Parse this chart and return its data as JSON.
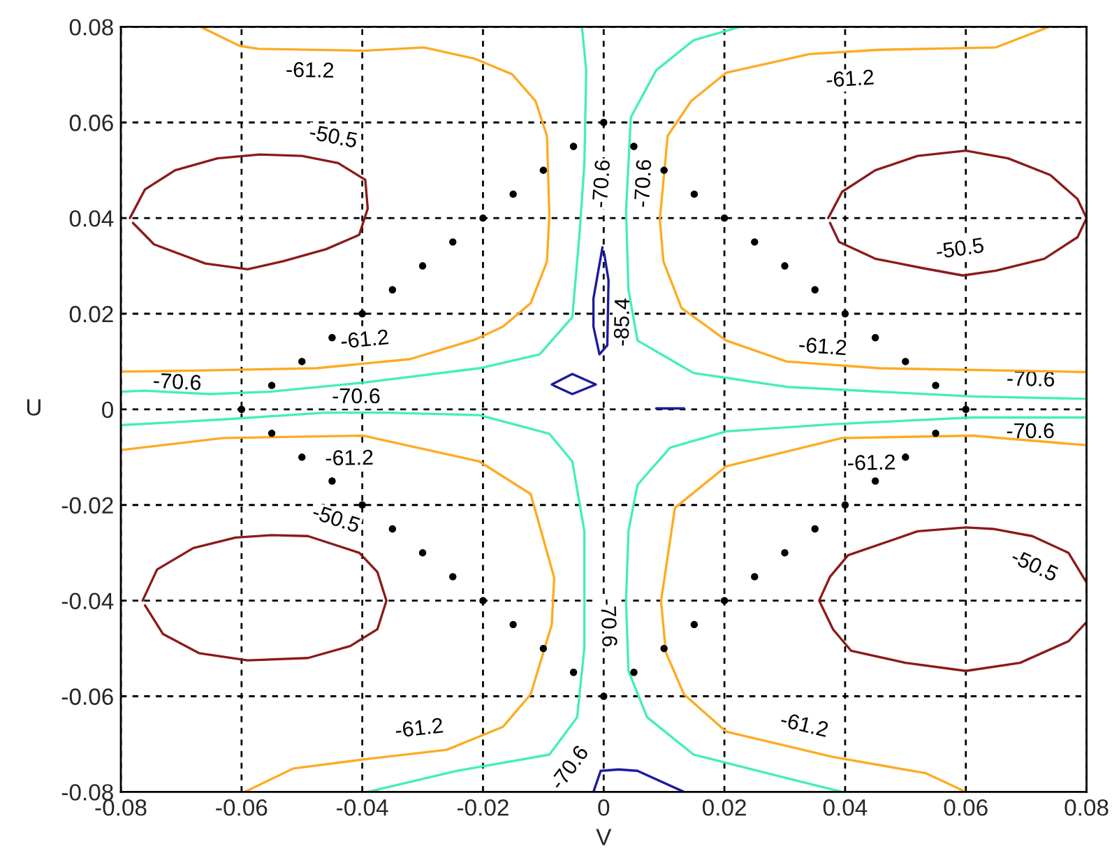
{
  "chart_data": {
    "type": "line",
    "xlabel": "V",
    "ylabel": "U",
    "xlim": [
      -0.08,
      0.08
    ],
    "ylim": [
      -0.08,
      0.08
    ],
    "xticks": [
      -0.08,
      -0.06,
      -0.04,
      -0.02,
      0,
      0.02,
      0.04,
      0.06,
      0.08
    ],
    "yticks": [
      -0.08,
      -0.06,
      -0.04,
      -0.02,
      0,
      0.02,
      0.04,
      0.06,
      0.08
    ],
    "grid": true,
    "legend": false,
    "series": [
      {
        "color": "#ffaa22",
        "x": [
          -0.08,
          -0.0676,
          -0.0476,
          -0.0321,
          -0.0213,
          -0.0167,
          -0.0121,
          -0.0094,
          -0.009,
          -0.0094,
          -0.0113,
          -0.0152,
          -0.0213,
          -0.0298,
          -0.0398,
          -0.0572,
          -0.0603,
          -0.0668
        ],
        "values": [
          0.0079,
          0.0081,
          0.0086,
          0.0105,
          0.0146,
          0.0173,
          0.0222,
          0.0309,
          0.0407,
          0.0572,
          0.0645,
          0.0701,
          0.0733,
          0.0757,
          0.075,
          0.0754,
          0.076,
          0.08
        ]
      },
      {
        "color": "#ffaa22",
        "x": [
          0.0738,
          0.065,
          0.0457,
          0.0341,
          0.0203,
          0.0145,
          0.0106,
          0.0093,
          0.0099,
          0.0129,
          0.0203,
          0.0303,
          0.0457,
          0.08
        ],
        "values": [
          0.08,
          0.0757,
          0.0752,
          0.0743,
          0.0704,
          0.0645,
          0.0572,
          0.0397,
          0.0309,
          0.0212,
          0.0144,
          0.01,
          0.0086,
          0.0078
        ]
      },
      {
        "color": "#ffaa22",
        "x": [
          -0.08,
          -0.063,
          -0.0398,
          -0.0206,
          -0.0121,
          -0.0082,
          -0.0086,
          -0.0121,
          -0.0167,
          -0.026,
          -0.0398,
          -0.0514,
          -0.0595
        ],
        "values": [
          -0.0085,
          -0.006,
          -0.0055,
          -0.0109,
          -0.0177,
          -0.0352,
          -0.045,
          -0.0596,
          -0.0664,
          -0.0712,
          -0.0732,
          -0.0751,
          -0.08
        ]
      },
      {
        "color": "#ffaa22",
        "x": [
          0.08,
          0.0611,
          0.0395,
          0.0203,
          0.0118,
          0.0095,
          0.0103,
          0.0133,
          0.0203,
          0.038,
          0.0534,
          0.06
        ],
        "values": [
          -0.0075,
          -0.0055,
          -0.006,
          -0.0119,
          -0.0206,
          -0.0401,
          -0.0508,
          -0.0596,
          -0.0674,
          -0.0727,
          -0.0761,
          -0.08
        ]
      },
      {
        "color": "#44eebb",
        "x": [
          -0.08,
          -0.0761,
          -0.0653,
          -0.0553,
          -0.0398,
          -0.0206,
          -0.0106,
          -0.0052,
          -0.004,
          -0.0032,
          -0.0029,
          -0.0036
        ],
        "values": [
          0.0037,
          0.0039,
          0.0032,
          0.0037,
          0.0056,
          0.0086,
          0.0115,
          0.0193,
          0.0368,
          0.0514,
          0.0709,
          0.08
        ]
      },
      {
        "color": "#44eebb",
        "x": [
          0.0226,
          0.0149,
          0.0087,
          0.0045,
          0.0037,
          0.0041,
          0.0056,
          0.0149,
          0.0303,
          0.0611,
          0.08
        ],
        "values": [
          0.08,
          0.0772,
          0.0709,
          0.0611,
          0.0416,
          0.0251,
          0.0144,
          0.0076,
          0.0047,
          0.0027,
          0.0022
        ]
      },
      {
        "color": "#44eebb",
        "x": [
          -0.08,
          -0.063,
          -0.0461,
          -0.036,
          -0.0206,
          -0.009,
          -0.0052,
          -0.0032,
          -0.0032,
          -0.0044,
          -0.009,
          -0.0244,
          -0.0391
        ],
        "values": [
          -0.0033,
          -0.0021,
          -0.0007,
          -0.0007,
          -0.0012,
          -0.0051,
          -0.0109,
          -0.0255,
          -0.0498,
          -0.0644,
          -0.0722,
          -0.0756,
          -0.08
        ]
      },
      {
        "color": "#44eebb",
        "x": [
          0.08,
          0.0611,
          0.038,
          0.0203,
          0.011,
          0.0056,
          0.0041,
          0.0037,
          0.0041,
          0.0072,
          0.0149,
          0.0303,
          0.0395
        ],
        "values": [
          -0.0017,
          -0.0017,
          -0.0031,
          -0.0046,
          -0.008,
          -0.0158,
          -0.0255,
          -0.0401,
          -0.0547,
          -0.0644,
          -0.0722,
          -0.0771,
          -0.08
        ]
      },
      {
        "color": "#8b1a1a",
        "x": [
          -0.0785,
          -0.076,
          -0.071,
          -0.064,
          -0.057,
          -0.05,
          -0.044,
          -0.0395,
          -0.0391,
          -0.0405,
          -0.046,
          -0.053,
          -0.059,
          -0.066,
          -0.0745,
          -0.078
        ],
        "values": [
          0.04,
          0.046,
          0.05,
          0.0525,
          0.0533,
          0.053,
          0.0515,
          0.048,
          0.042,
          0.0365,
          0.0335,
          0.031,
          0.0293,
          0.0305,
          0.0345,
          0.039
        ]
      },
      {
        "color": "#8b1a1a",
        "x": [
          0.0372,
          0.0395,
          0.045,
          0.052,
          0.06,
          0.067,
          0.074,
          0.0785,
          0.08,
          0.0785,
          0.073,
          0.065,
          0.0595,
          0.053,
          0.045,
          0.039,
          0.0375
        ],
        "values": [
          0.04,
          0.0455,
          0.05,
          0.053,
          0.0541,
          0.0525,
          0.049,
          0.044,
          0.04,
          0.036,
          0.0315,
          0.029,
          0.028,
          0.0295,
          0.0315,
          0.035,
          0.039
        ]
      },
      {
        "color": "#8b1a1a",
        "x": [
          -0.0764,
          -0.074,
          -0.068,
          -0.061,
          -0.055,
          -0.049,
          -0.0405,
          -0.0375,
          -0.036,
          -0.0375,
          -0.042,
          -0.049,
          -0.059,
          -0.067,
          -0.073,
          -0.076
        ],
        "values": [
          -0.04,
          -0.0335,
          -0.029,
          -0.0268,
          -0.0263,
          -0.0265,
          -0.03,
          -0.034,
          -0.04,
          -0.046,
          -0.0495,
          -0.052,
          -0.0525,
          -0.051,
          -0.047,
          -0.041
        ]
      },
      {
        "color": "#8b1a1a",
        "x": [
          0.08,
          0.077,
          0.071,
          0.0645,
          0.06,
          0.052,
          0.0405,
          0.0375,
          0.0357,
          0.038,
          0.041,
          0.05,
          0.06,
          0.069,
          0.077,
          0.08
        ],
        "values": [
          -0.0362,
          -0.03,
          -0.0265,
          -0.025,
          -0.0247,
          -0.0255,
          -0.0305,
          -0.035,
          -0.04,
          -0.046,
          -0.0505,
          -0.053,
          -0.0547,
          -0.053,
          -0.0485,
          -0.0445
        ]
      },
      {
        "color": "#1a1aa0",
        "x": [
          -0.0002,
          -0.0017,
          -0.0017,
          -0.0007,
          0.0006,
          0.0008,
          0.0001
        ],
        "values": [
          0.0339,
          0.0232,
          0.0173,
          0.0115,
          0.0134,
          0.027,
          0.0325
        ]
      },
      {
        "color": "#1a1aa0",
        "x": [
          -0.0086,
          -0.0052,
          -0.0013,
          -0.0052,
          -0.0083
        ],
        "values": [
          0.0052,
          0.0074,
          0.0052,
          0.0032,
          0.005
        ]
      },
      {
        "color": "#1a1aa0",
        "x": [
          -0.0017,
          -0.0005,
          0.0025,
          0.0056,
          0.0133
        ],
        "values": [
          -0.08,
          -0.0756,
          -0.0753,
          -0.0756,
          -0.08
        ]
      },
      {
        "color": "#1a1aa0",
        "x": [
          0.0087,
          0.0133
        ],
        "values": [
          0.0002,
          0.0002
        ]
      },
      {
        "type": "scatter",
        "color": "#000000",
        "marker": "circle",
        "x": [
          0,
          0.005,
          0.01,
          0.015,
          0.02,
          0.025,
          0.03,
          0.035,
          0.04,
          0.045,
          0.05,
          0.055,
          0.06,
          0.055,
          0.05,
          0.045,
          0.04,
          0.035,
          0.03,
          0.025,
          0.02,
          0.015,
          0.01,
          0.005,
          0,
          -0.005,
          -0.01,
          -0.015,
          -0.02,
          -0.025,
          -0.03,
          -0.035,
          -0.04,
          -0.045,
          -0.05,
          -0.055,
          -0.06,
          -0.055,
          -0.05,
          -0.045,
          -0.04,
          -0.035,
          -0.03,
          -0.025,
          -0.02,
          -0.015,
          -0.01,
          -0.005
        ],
        "values": [
          0.06,
          0.055,
          0.05,
          0.045,
          0.04,
          0.035,
          0.03,
          0.025,
          0.02,
          0.015,
          0.01,
          0.005,
          0,
          -0.005,
          -0.01,
          -0.015,
          -0.02,
          -0.025,
          -0.03,
          -0.035,
          -0.04,
          -0.045,
          -0.05,
          -0.055,
          -0.06,
          -0.055,
          -0.05,
          -0.045,
          -0.04,
          -0.035,
          -0.03,
          -0.025,
          -0.02,
          -0.015,
          -0.01,
          -0.005,
          0,
          0.005,
          0.01,
          0.015,
          0.02,
          0.025,
          0.03,
          0.035,
          0.04,
          0.045,
          0.05,
          0.055
        ]
      }
    ],
    "annotations": [
      {
        "text": "-61.2",
        "x": -0.0486,
        "y": 0.0755
      },
      {
        "text": "-50.5",
        "x": -0.0456,
        "y": 0.052
      },
      {
        "text": "-61.2",
        "x": -0.0392,
        "y": 0.0095
      },
      {
        "text": "-70.6",
        "x": -0.0708,
        "y": 0.0022
      },
      {
        "text": "-70.6",
        "x": -0.041,
        "y": -0.0008
      },
      {
        "text": "-61.2",
        "x": -0.0422,
        "y": -0.0056
      },
      {
        "text": "-50.5",
        "x": -0.0456,
        "y": -0.0278
      },
      {
        "text": "-61.2",
        "x": -0.0301,
        "y": -0.0718
      },
      {
        "text": "-70.6",
        "x": -0.0086,
        "y": -0.0722
      },
      {
        "text": "-70.6",
        "x": -0.004,
        "y": 0.0475
      },
      {
        "text": "-70.6",
        "x": 0.0029,
        "y": 0.0475
      },
      {
        "text": "-85.4",
        "x": 0.0007,
        "y": 0.0183
      },
      {
        "text": "-70.6",
        "x": 0.0038,
        "y": -0.0445
      },
      {
        "text": "-61.2",
        "x": 0.0406,
        "y": 0.0737
      },
      {
        "text": "-50.5",
        "x": 0.0596,
        "y": 0.0285
      },
      {
        "text": "-61.2",
        "x": 0.036,
        "y": 0.008
      },
      {
        "text": "-70.6",
        "x": 0.0707,
        "y": 0.0028
      },
      {
        "text": "-70.6",
        "x": 0.0707,
        "y": -0.0016
      },
      {
        "text": "-61.2",
        "x": 0.0443,
        "y": -0.0066
      },
      {
        "text": "-50.5",
        "x": 0.0729,
        "y": -0.0285
      },
      {
        "text": "-61.2",
        "x": 0.0323,
        "y": -0.071
      }
    ]
  }
}
